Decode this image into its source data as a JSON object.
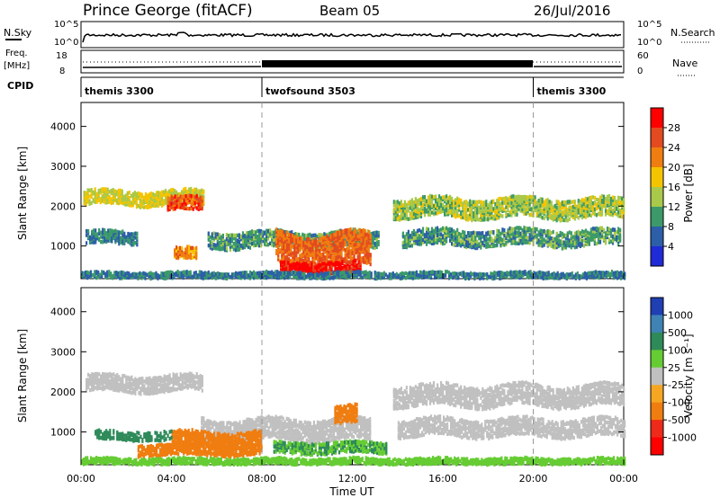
{
  "header": {
    "station": "Prince George (fitACF)",
    "beam": "Beam 05",
    "date": "26/Jul/2016"
  },
  "panels": {
    "nsky": {
      "label": "N.Sky",
      "ticks": [
        "10^5",
        "10^0"
      ]
    },
    "nsearch": {
      "label": "N.Search",
      "ticks": [
        "10^5",
        "10^0"
      ]
    },
    "freq": {
      "label1": "Freq.",
      "label2": "[MHz]",
      "ticks": [
        "18",
        "8"
      ]
    },
    "nave": {
      "label": "Nave",
      "ticks": [
        "60",
        "0"
      ]
    },
    "cpid": {
      "label": "CPID",
      "modes": [
        {
          "name": "themis 3300",
          "start_hour": 0,
          "end_hour": 8
        },
        {
          "name": "twofsound 3503",
          "start_hour": 8,
          "end_hour": 20
        },
        {
          "name": "themis 3300",
          "start_hour": 20,
          "end_hour": 24
        }
      ]
    }
  },
  "power_colorbar": {
    "label": "Power [dB]",
    "ticks": [
      "28",
      "24",
      "20",
      "16",
      "12",
      "8",
      "4"
    ],
    "colors": [
      "#ff0000",
      "#e34a1f",
      "#f07d10",
      "#f5c400",
      "#a8c94a",
      "#3c9a6a",
      "#2c5fa8",
      "#1f2bd6"
    ]
  },
  "velocity_colorbar": {
    "label": "Velocity [m s⁻¹]",
    "ticks": [
      "1000",
      "500",
      "100",
      "25",
      "-25",
      "-100",
      "-500",
      "-1000"
    ],
    "colors": [
      "#1f3fb3",
      "#3f83b5",
      "#2f8a5a",
      "#66cc33",
      "#c0c0c0",
      "#f5a623",
      "#f07d10",
      "#ee2a1a",
      "#ff0000"
    ]
  },
  "axes": {
    "ylabel": "Slant Range [km]",
    "yticks": [
      "4000",
      "3000",
      "2000",
      "1000"
    ],
    "xticks": [
      "00:00",
      "04:00",
      "08:00",
      "12:00",
      "16:00",
      "20:00",
      "00:00"
    ],
    "xlabel": "Time UT"
  },
  "chart_data": [
    {
      "type": "heatmap",
      "title": "Power",
      "ylabel": "Slant Range [km]",
      "x_range_hours": [
        0,
        24
      ],
      "ylim": [
        180,
        4600
      ],
      "regions": [
        {
          "t0": 0.1,
          "t1": 5.4,
          "r_center": 2200,
          "r_half": 160,
          "value": 16
        },
        {
          "t0": 3.8,
          "t1": 5.4,
          "r_center": 2050,
          "r_half": 150,
          "value": 26
        },
        {
          "t0": 0.2,
          "t1": 2.5,
          "r_center": 1200,
          "r_half": 140,
          "value": 8
        },
        {
          "t0": 4.1,
          "t1": 5.1,
          "r_center": 800,
          "r_half": 120,
          "value": 22
        },
        {
          "t0": 5.6,
          "t1": 13.2,
          "r_center": 1150,
          "r_half": 180,
          "value": 10
        },
        {
          "t0": 8.6,
          "t1": 12.8,
          "r_center": 900,
          "r_half": 380,
          "value": 24
        },
        {
          "t0": 8.8,
          "t1": 12.4,
          "r_center": 450,
          "r_half": 120,
          "value": 30
        },
        {
          "t0": 14.2,
          "t1": 23.8,
          "r_center": 1200,
          "r_half": 180,
          "value": 10
        },
        {
          "t0": 13.8,
          "t1": 24.0,
          "r_center": 1950,
          "r_half": 220,
          "value": 14
        },
        {
          "t0": 0.0,
          "t1": 24.0,
          "r_center": 260,
          "r_half": 60,
          "value": 8
        }
      ]
    },
    {
      "type": "heatmap",
      "title": "Velocity",
      "ylabel": "Slant Range [km]",
      "x_range_hours": [
        0,
        24
      ],
      "ylim": [
        180,
        4600
      ],
      "regions": [
        {
          "t0": 0.2,
          "t1": 5.4,
          "r_center": 2200,
          "r_half": 180,
          "value": 0
        },
        {
          "t0": 5.3,
          "t1": 12.8,
          "r_center": 1050,
          "r_half": 250,
          "value": 0
        },
        {
          "t0": 13.8,
          "t1": 24.0,
          "r_center": 1900,
          "r_half": 240,
          "value": 0
        },
        {
          "t0": 14.0,
          "t1": 24.0,
          "r_center": 1100,
          "r_half": 200,
          "value": 0
        },
        {
          "t0": 4.0,
          "t1": 8.0,
          "r_center": 800,
          "r_half": 180,
          "value": -300
        },
        {
          "t0": 11.2,
          "t1": 12.2,
          "r_center": 1400,
          "r_half": 200,
          "value": -300
        },
        {
          "t0": 2.5,
          "t1": 8.0,
          "r_center": 550,
          "r_half": 120,
          "value": -150
        },
        {
          "t0": 0.6,
          "t1": 4.0,
          "r_center": 900,
          "r_half": 90,
          "value": 150
        },
        {
          "t0": 8.5,
          "t1": 13.5,
          "r_center": 600,
          "r_half": 120,
          "value": 100
        },
        {
          "t0": 0.0,
          "t1": 24.0,
          "r_center": 260,
          "r_half": 60,
          "value": 60
        }
      ]
    }
  ]
}
